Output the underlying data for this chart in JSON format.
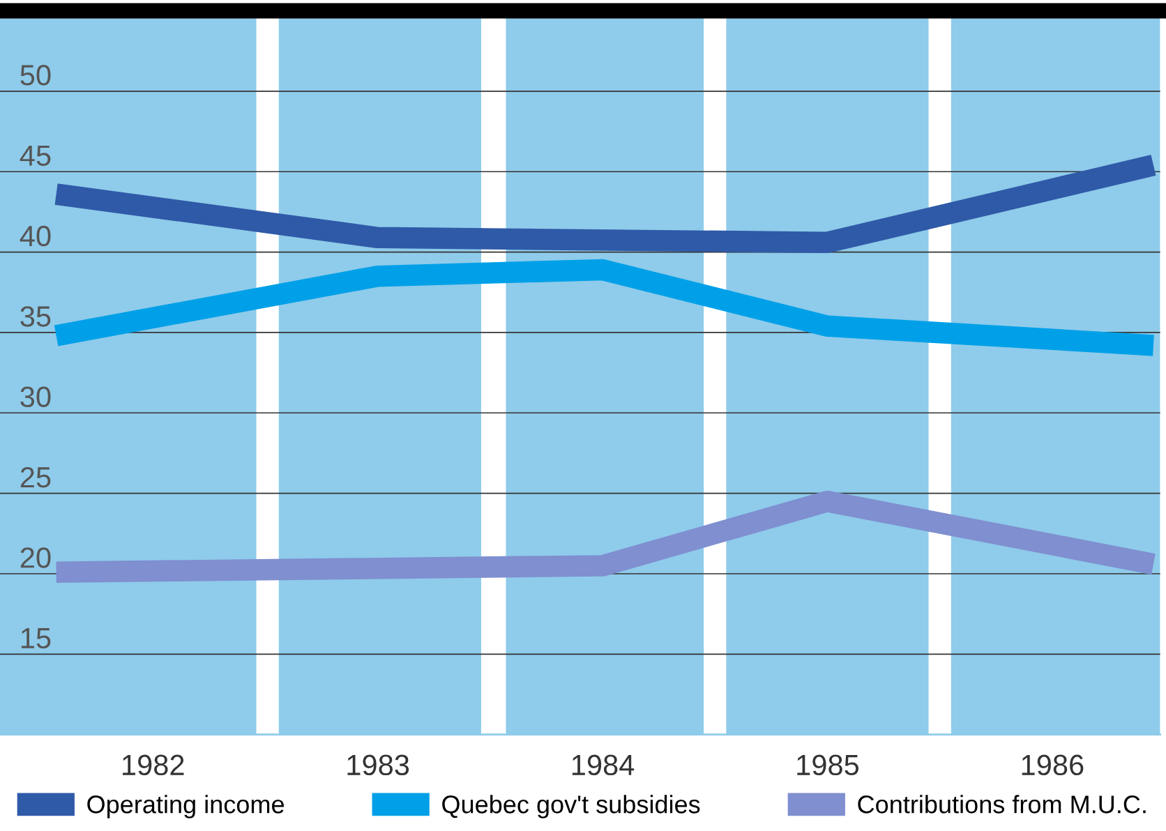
{
  "chart_data": {
    "type": "line",
    "xlim": [
      1981.32,
      1986.48
    ],
    "xticks": [
      {
        "value": 1982,
        "label": "1982"
      },
      {
        "value": 1983,
        "label": "1983"
      },
      {
        "value": 1984,
        "label": "1984"
      },
      {
        "value": 1985,
        "label": "1985"
      },
      {
        "value": 1986,
        "label": "1986"
      }
    ],
    "ylim": [
      10,
      55
    ],
    "yticks": [
      15,
      20,
      25,
      30,
      35,
      40,
      45,
      50
    ],
    "grid": "y",
    "legend": "bottom",
    "marker": "none",
    "line_style": "solid",
    "bands": [
      {
        "axis": "x",
        "from": 1981.32,
        "to": 1982.46,
        "color": "#8fcbea"
      },
      {
        "axis": "x",
        "from": 1982.56,
        "to": 1983.46,
        "color": "#8fcbea"
      },
      {
        "axis": "x",
        "from": 1983.57,
        "to": 1984.45,
        "color": "#8fcbea"
      },
      {
        "axis": "x",
        "from": 1984.55,
        "to": 1985.45,
        "color": "#8fcbea"
      },
      {
        "axis": "x",
        "from": 1985.55,
        "to": 1986.48,
        "color": "#8fcbea"
      }
    ],
    "series": [
      {
        "name": "Operating income",
        "color": "#2f5aa8",
        "x": [
          1981.57,
          1983,
          1985,
          1986.45
        ],
        "values": [
          43.6,
          40.9,
          40.6,
          45.4
        ]
      },
      {
        "name": "Quebec gov't subsidies",
        "color": "#00a0e8",
        "x": [
          1981.57,
          1983,
          1984,
          1985,
          1986.45
        ],
        "values": [
          34.8,
          38.5,
          38.9,
          35.4,
          34.2
        ]
      },
      {
        "name": "Contributions from M.U.C.",
        "color": "#7f8fd0",
        "x": [
          1981.57,
          1984,
          1985,
          1986.45
        ],
        "values": [
          20.1,
          20.5,
          24.5,
          20.6
        ]
      }
    ]
  }
}
